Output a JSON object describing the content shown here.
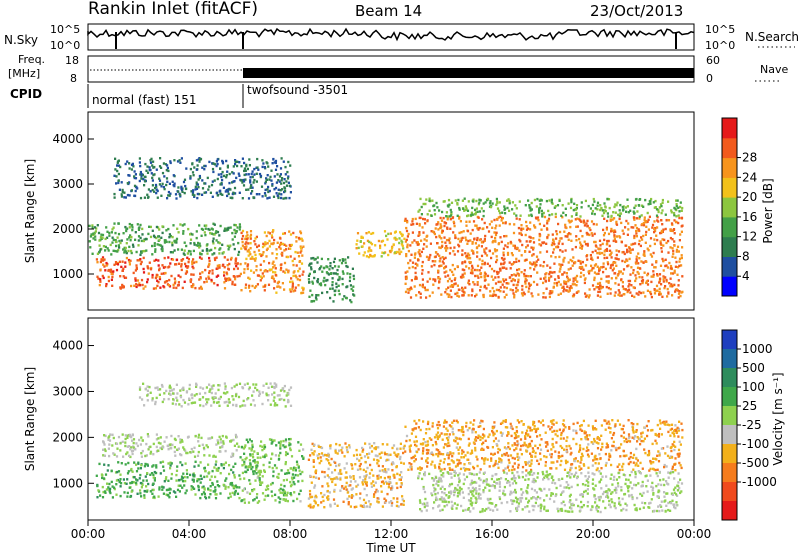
{
  "header": {
    "station": "Rankin Inlet (fitACF)",
    "beam": "Beam 14",
    "date": "23/Oct/2013"
  },
  "noise_panel": {
    "left_label": "N.Sky",
    "right_label": "N.Search",
    "left_ticks": [
      "10^5",
      "10^0"
    ],
    "right_ticks": [
      "10^5",
      "10^0"
    ]
  },
  "freq_panel": {
    "left_label_top": "Freq.",
    "left_label_bottom": "[MHz]",
    "left_ticks": [
      "18",
      "8"
    ],
    "right_label": "Nave",
    "right_ticks": [
      "60",
      "0"
    ]
  },
  "cpid_panel": {
    "label": "CPID",
    "modes": [
      {
        "name": "normal (fast) 151",
        "start": "00:00",
        "end": "06:00"
      },
      {
        "name": "twofsound -3501",
        "start": "06:00",
        "end": "24:00"
      }
    ]
  },
  "time_axis": {
    "title": "Time UT",
    "ticks": [
      "00:00",
      "04:00",
      "08:00",
      "12:00",
      "16:00",
      "20:00",
      "00:00"
    ]
  },
  "chart_data": [
    {
      "type": "heatmap",
      "panel": "power",
      "ylabel": "Slant Range [km]",
      "yticks": [
        "1000",
        "2000",
        "3000",
        "4000"
      ],
      "colorbar_label": "Power [dB]",
      "colorbar_ticks": [
        "4",
        "8",
        "12",
        "16",
        "20",
        "24",
        "28"
      ],
      "colorbar_colors": [
        "#0000ff",
        "#1f4fa0",
        "#2e7d4f",
        "#43a047",
        "#8cc63f",
        "#f2c11b",
        "#f7941d",
        "#f25a1d",
        "#e51a1a"
      ],
      "scatter_regions": [
        {
          "t0": 0.3,
          "t1": 6.0,
          "r0": 700,
          "r1": 1400,
          "level": 28
        },
        {
          "t0": 0.0,
          "t1": 6.0,
          "r0": 1450,
          "r1": 2150,
          "level": 12
        },
        {
          "t0": 6.0,
          "t1": 8.5,
          "r0": 600,
          "r1": 2000,
          "level": 24
        },
        {
          "t0": 8.7,
          "t1": 10.5,
          "r0": 400,
          "r1": 1400,
          "level": 10
        },
        {
          "t0": 10.5,
          "t1": 12.5,
          "r0": 1400,
          "r1": 2000,
          "level": 20
        },
        {
          "t0": 12.5,
          "t1": 23.5,
          "r0": 500,
          "r1": 2300,
          "level": 26
        },
        {
          "t0": 13.0,
          "t1": 23.5,
          "r0": 2300,
          "r1": 2700,
          "level": 14
        },
        {
          "t0": 1.0,
          "t1": 8.0,
          "r0": 2700,
          "r1": 3600,
          "level": 6
        }
      ]
    },
    {
      "type": "heatmap",
      "panel": "velocity",
      "ylabel": "Slant Range [km]",
      "yticks": [
        "1000",
        "2000",
        "3000",
        "4000"
      ],
      "colorbar_label": "Velocity [m s⁻¹]",
      "colorbar_ticks": [
        "1000",
        "500",
        "100",
        "25",
        "-25",
        "-100",
        "-500",
        "-1000"
      ],
      "colorbar_colors": [
        "#1f3fbf",
        "#1f6ba0",
        "#2e8c5c",
        "#3fa84a",
        "#8ed14f",
        "#bfbfbf",
        "#f2b01b",
        "#f57c1d",
        "#f04a1d",
        "#e51a1a"
      ],
      "scatter_regions": [
        {
          "t0": 0.3,
          "t1": 6.0,
          "r0": 700,
          "r1": 1500,
          "level": 300
        },
        {
          "t0": 0.5,
          "t1": 6.0,
          "r0": 1600,
          "r1": 2100,
          "level": 0
        },
        {
          "t0": 6.0,
          "t1": 8.5,
          "r0": 600,
          "r1": 2000,
          "level": 200
        },
        {
          "t0": 8.7,
          "t1": 12.5,
          "r0": 500,
          "r1": 1900,
          "level": -300
        },
        {
          "t0": 12.5,
          "t1": 23.5,
          "r0": 1300,
          "r1": 2400,
          "level": -400
        },
        {
          "t0": 13.0,
          "t1": 23.5,
          "r0": 400,
          "r1": 1300,
          "level": 0
        },
        {
          "t0": 2.0,
          "t1": 8.0,
          "r0": 2700,
          "r1": 3200,
          "level": 0
        }
      ]
    }
  ]
}
